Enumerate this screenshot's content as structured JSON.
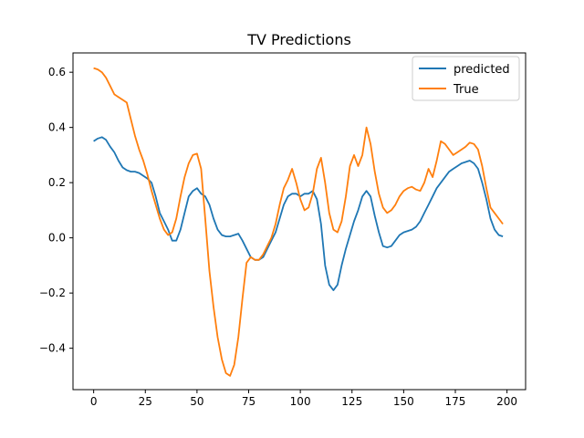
{
  "chart_data": {
    "type": "line",
    "title": "TV Predictions",
    "xlabel": "",
    "ylabel": "",
    "xlim": [
      -10,
      209
    ],
    "ylim": [
      -0.55,
      0.67
    ],
    "xticks": [
      0,
      25,
      50,
      75,
      100,
      125,
      150,
      175,
      200
    ],
    "yticks": [
      -0.4,
      -0.2,
      0.0,
      0.2,
      0.4,
      0.6
    ],
    "xtick_labels": [
      "0",
      "25",
      "50",
      "75",
      "100",
      "125",
      "150",
      "175",
      "200"
    ],
    "ytick_labels": [
      "−0.4",
      "−0.2",
      "0.0",
      "0.2",
      "0.4",
      "0.6"
    ],
    "grid": false,
    "legend_position": "top-right",
    "series": [
      {
        "name": "predicted",
        "color": "#1f77b4",
        "x": [
          0,
          2,
          4,
          6,
          8,
          10,
          12,
          14,
          16,
          18,
          20,
          22,
          24,
          26,
          28,
          30,
          32,
          34,
          36,
          38,
          40,
          42,
          44,
          46,
          48,
          50,
          52,
          54,
          56,
          58,
          60,
          62,
          64,
          66,
          68,
          70,
          72,
          74,
          76,
          78,
          80,
          82,
          84,
          86,
          88,
          90,
          92,
          94,
          96,
          98,
          100,
          102,
          104,
          106,
          108,
          110,
          112,
          114,
          116,
          118,
          120,
          122,
          124,
          126,
          128,
          130,
          132,
          134,
          136,
          138,
          140,
          142,
          144,
          146,
          148,
          150,
          152,
          154,
          156,
          158,
          160,
          162,
          164,
          166,
          168,
          170,
          172,
          174,
          176,
          178,
          180,
          182,
          184,
          186,
          188,
          190,
          192,
          194,
          196,
          198
        ],
        "values": [
          0.35,
          0.36,
          0.365,
          0.355,
          0.33,
          0.31,
          0.28,
          0.255,
          0.245,
          0.24,
          0.24,
          0.235,
          0.225,
          0.215,
          0.2,
          0.15,
          0.09,
          0.06,
          0.03,
          -0.01,
          -0.01,
          0.03,
          0.09,
          0.15,
          0.17,
          0.18,
          0.16,
          0.15,
          0.12,
          0.07,
          0.03,
          0.01,
          0.005,
          0.005,
          0.01,
          0.015,
          -0.01,
          -0.04,
          -0.07,
          -0.08,
          -0.08,
          -0.07,
          -0.04,
          -0.01,
          0.02,
          0.07,
          0.12,
          0.15,
          0.16,
          0.16,
          0.15,
          0.16,
          0.16,
          0.17,
          0.14,
          0.05,
          -0.1,
          -0.17,
          -0.19,
          -0.17,
          -0.1,
          -0.04,
          0.01,
          0.06,
          0.1,
          0.15,
          0.17,
          0.15,
          0.08,
          0.02,
          -0.03,
          -0.035,
          -0.03,
          -0.01,
          0.01,
          0.02,
          0.025,
          0.03,
          0.04,
          0.06,
          0.09,
          0.12,
          0.15,
          0.18,
          0.2,
          0.22,
          0.24,
          0.25,
          0.26,
          0.27,
          0.275,
          0.28,
          0.27,
          0.25,
          0.2,
          0.14,
          0.07,
          0.03,
          0.01,
          0.005
        ]
      },
      {
        "name": "True",
        "color": "#ff7f0e",
        "x": [
          0,
          2,
          4,
          6,
          8,
          10,
          12,
          14,
          16,
          18,
          20,
          22,
          24,
          26,
          28,
          30,
          32,
          34,
          36,
          38,
          40,
          42,
          44,
          46,
          48,
          50,
          52,
          54,
          56,
          58,
          60,
          62,
          64,
          66,
          68,
          70,
          72,
          74,
          76,
          78,
          80,
          82,
          84,
          86,
          88,
          90,
          92,
          94,
          96,
          98,
          100,
          102,
          104,
          106,
          108,
          110,
          112,
          114,
          116,
          118,
          120,
          122,
          124,
          126,
          128,
          130,
          132,
          134,
          136,
          138,
          140,
          142,
          144,
          146,
          148,
          150,
          152,
          154,
          156,
          158,
          160,
          162,
          164,
          166,
          168,
          170,
          172,
          174,
          176,
          178,
          180,
          182,
          184,
          186,
          188,
          190,
          192,
          194,
          196,
          198
        ],
        "values": [
          0.615,
          0.61,
          0.6,
          0.58,
          0.55,
          0.52,
          0.51,
          0.5,
          0.49,
          0.43,
          0.37,
          0.32,
          0.28,
          0.23,
          0.17,
          0.12,
          0.07,
          0.03,
          0.01,
          0.02,
          0.07,
          0.15,
          0.22,
          0.27,
          0.3,
          0.305,
          0.25,
          0.07,
          -0.12,
          -0.25,
          -0.36,
          -0.44,
          -0.49,
          -0.5,
          -0.46,
          -0.36,
          -0.22,
          -0.09,
          -0.07,
          -0.08,
          -0.08,
          -0.06,
          -0.03,
          0.0,
          0.05,
          0.12,
          0.18,
          0.21,
          0.25,
          0.2,
          0.14,
          0.1,
          0.11,
          0.16,
          0.25,
          0.29,
          0.2,
          0.09,
          0.03,
          0.02,
          0.06,
          0.15,
          0.26,
          0.3,
          0.26,
          0.3,
          0.4,
          0.34,
          0.24,
          0.16,
          0.11,
          0.09,
          0.1,
          0.12,
          0.15,
          0.17,
          0.18,
          0.185,
          0.175,
          0.17,
          0.2,
          0.25,
          0.22,
          0.28,
          0.35,
          0.34,
          0.32,
          0.3,
          0.31,
          0.32,
          0.33,
          0.345,
          0.34,
          0.32,
          0.26,
          0.18,
          0.11,
          0.09,
          0.07,
          0.05
        ]
      }
    ]
  }
}
